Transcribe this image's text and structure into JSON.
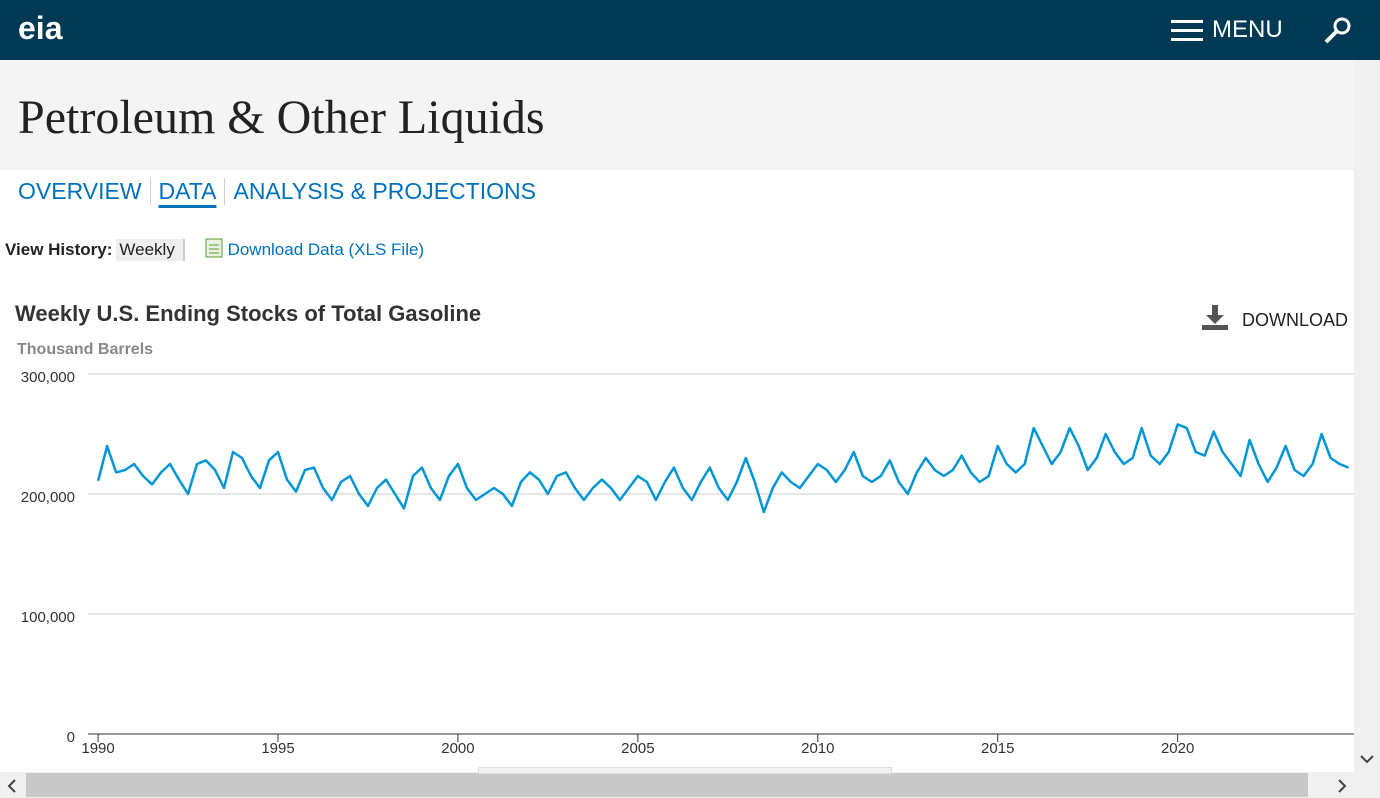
{
  "header": {
    "logo": "eia",
    "menu": "MENU"
  },
  "page_title": "Petroleum & Other Liquids",
  "nav": [
    "OVERVIEW",
    "DATA",
    "ANALYSIS & PROJECTIONS"
  ],
  "toolbar": {
    "label": "View History:",
    "frequency": "Weekly",
    "download_link": "Download Data (XLS File)"
  },
  "download_button": "DOWNLOAD",
  "chart_data": {
    "type": "line",
    "title": "Weekly U.S. Ending Stocks of Total Gasoline",
    "y_label": "Thousand Barrels",
    "color": "#0096d6",
    "grid": true,
    "xlim": [
      1989.72,
      2024.9
    ],
    "xticks": [
      1990,
      1995,
      2000,
      2005,
      2010,
      2015,
      2020
    ],
    "ylim": [
      0,
      300000
    ],
    "yticks": [
      0,
      {
        "value": 100000,
        "label": "100,000"
      },
      {
        "value": 200000,
        "label": "200,000"
      },
      {
        "value": 300000,
        "label": "300,000"
      }
    ],
    "x": [
      1990,
      1990.25,
      1990.5,
      1990.75,
      1991,
      1991.25,
      1991.5,
      1991.75,
      1992,
      1992.25,
      1992.5,
      1992.75,
      1993,
      1993.25,
      1993.5,
      1993.75,
      1994,
      1994.25,
      1994.5,
      1994.75,
      1995,
      1995.25,
      1995.5,
      1995.75,
      1996,
      1996.25,
      1996.5,
      1996.75,
      1997,
      1997.25,
      1997.5,
      1997.75,
      1998,
      1998.25,
      1998.5,
      1998.75,
      1999,
      1999.25,
      1999.5,
      1999.75,
      2000,
      2000.25,
      2000.5,
      2000.75,
      2001,
      2001.25,
      2001.5,
      2001.75,
      2002,
      2002.25,
      2002.5,
      2002.75,
      2003,
      2003.25,
      2003.5,
      2003.75,
      2004,
      2004.25,
      2004.5,
      2004.75,
      2005,
      2005.25,
      2005.5,
      2005.75,
      2006,
      2006.25,
      2006.5,
      2006.75,
      2007,
      2007.25,
      2007.5,
      2007.75,
      2008,
      2008.25,
      2008.5,
      2008.75,
      2009,
      2009.25,
      2009.5,
      2009.75,
      2010,
      2010.25,
      2010.5,
      2010.75,
      2011,
      2011.25,
      2011.5,
      2011.75,
      2012,
      2012.25,
      2012.5,
      2012.75,
      2013,
      2013.25,
      2013.5,
      2013.75,
      2014,
      2014.25,
      2014.5,
      2014.75,
      2015,
      2015.25,
      2015.5,
      2015.75,
      2016,
      2016.25,
      2016.5,
      2016.75,
      2017,
      2017.25,
      2017.5,
      2017.75,
      2018,
      2018.25,
      2018.5,
      2018.75,
      2019,
      2019.25,
      2019.5,
      2019.75,
      2020,
      2020.25,
      2020.5,
      2020.75,
      2021,
      2021.25,
      2021.5,
      2021.75,
      2022,
      2022.25,
      2022.5,
      2022.75,
      2023,
      2023.25,
      2023.5,
      2023.75,
      2024,
      2024.25,
      2024.5,
      2024.75
    ],
    "values": [
      211000,
      240000,
      218000,
      220000,
      225000,
      215000,
      208000,
      218000,
      225000,
      212000,
      200000,
      225000,
      228000,
      220000,
      205000,
      235000,
      230000,
      215000,
      205000,
      228000,
      235000,
      212000,
      202000,
      220000,
      222000,
      205000,
      195000,
      210000,
      215000,
      200000,
      190000,
      205000,
      212000,
      200000,
      188000,
      215000,
      222000,
      205000,
      195000,
      215000,
      225000,
      205000,
      195000,
      200000,
      205000,
      200000,
      190000,
      210000,
      218000,
      212000,
      200000,
      215000,
      218000,
      205000,
      195000,
      205000,
      212000,
      205000,
      195000,
      205000,
      215000,
      210000,
      195000,
      210000,
      222000,
      205000,
      195000,
      210000,
      222000,
      205000,
      195000,
      210000,
      230000,
      210000,
      185000,
      205000,
      218000,
      210000,
      205000,
      215000,
      225000,
      220000,
      210000,
      220000,
      235000,
      215000,
      210000,
      215000,
      228000,
      210000,
      200000,
      218000,
      230000,
      220000,
      215000,
      220000,
      232000,
      218000,
      210000,
      215000,
      240000,
      225000,
      218000,
      225000,
      255000,
      240000,
      225000,
      235000,
      255000,
      240000,
      220000,
      230000,
      250000,
      235000,
      225000,
      230000,
      255000,
      232000,
      225000,
      235000,
      258000,
      255000,
      235000,
      232000,
      252000,
      235000,
      225000,
      215000,
      245000,
      225000,
      210000,
      222000,
      240000,
      220000,
      215000,
      225000,
      250000,
      230000,
      225000,
      222000
    ]
  }
}
